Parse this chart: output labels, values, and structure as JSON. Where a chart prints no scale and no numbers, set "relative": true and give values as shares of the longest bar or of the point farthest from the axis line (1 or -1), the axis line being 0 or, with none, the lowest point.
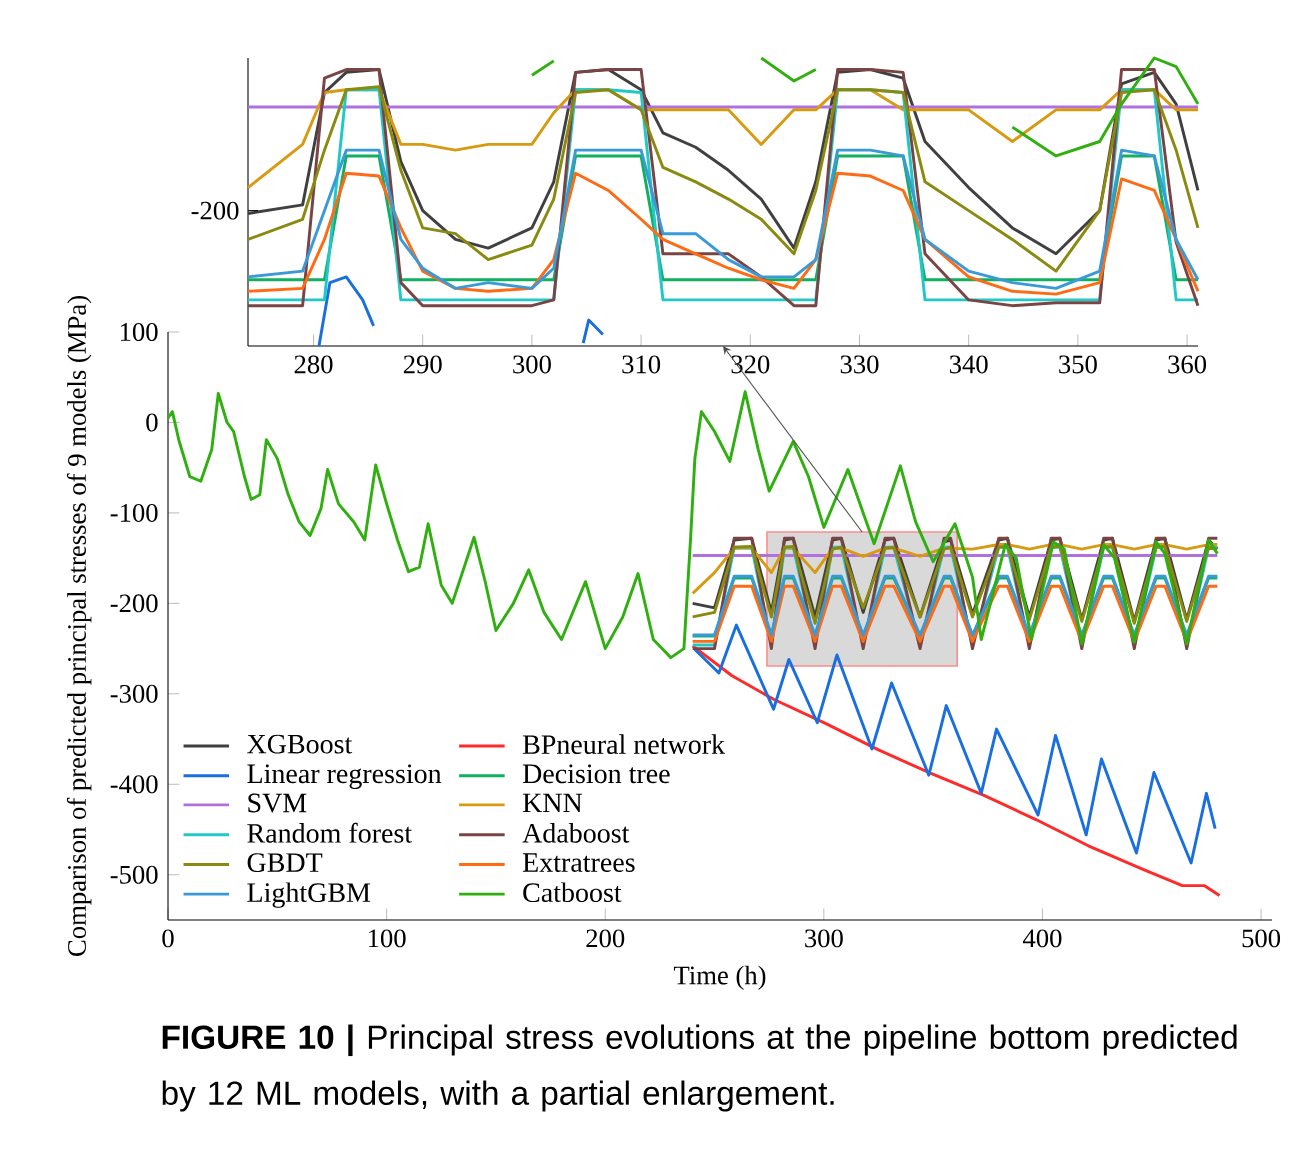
{
  "chart_data": [
    {
      "type": "line",
      "xlabel": "Time (h)",
      "ylabel": "Comparison of predicted principal stresses of 9 models (MPa)",
      "annotations": [
        "**FIGURE 10 |** Principal stress evolutions at the pipeline bottom predicted by 12 ML models, with a partial enlargement."
      ],
      "xlim": [
        0,
        505
      ],
      "ylim": [
        -550,
        100
      ],
      "xticks": [
        0,
        100,
        200,
        300,
        400,
        500
      ],
      "yticks": [
        -500,
        -400,
        -300,
        -200,
        -100,
        0,
        100
      ],
      "legend": "bottom left",
      "x": [
        240,
        250,
        259,
        267,
        276,
        282,
        286,
        296,
        304,
        308,
        318,
        328,
        332,
        344,
        355,
        358,
        368,
        380,
        384,
        394,
        404,
        408,
        418,
        428,
        432,
        442,
        452,
        456,
        466,
        476,
        480
      ],
      "series": [
        {
          "name": "XGBoost",
          "color": "#404040",
          "values": [
            -200,
            -205,
            -130,
            -128,
            -210,
            -130,
            -128,
            -215,
            -130,
            -128,
            -210,
            -130,
            -128,
            -215,
            -132,
            -130,
            -212,
            -130,
            -128,
            -215,
            -130,
            -128,
            -218,
            -130,
            -128,
            -220,
            -130,
            -128,
            -218,
            -130,
            -140
          ]
        },
        {
          "name": "BPneural network",
          "color": "#ff2a2a",
          "x": [
            240,
            258,
            277,
            301,
            325,
            349,
            373,
            397,
            421,
            446,
            464,
            474,
            481
          ],
          "values": [
            -247,
            -280,
            -306,
            -333,
            -362,
            -388,
            -412,
            -439,
            -468,
            -494,
            -512,
            -512,
            -523
          ]
        },
        {
          "name": "Linear regression",
          "color": "#1a6fe0",
          "x": [
            241,
            252,
            260,
            277,
            284,
            297,
            306,
            322,
            331,
            348,
            356,
            372,
            379,
            398,
            406,
            420,
            427,
            443,
            451,
            468,
            475,
            479
          ],
          "values": [
            -251,
            -277,
            -224,
            -317,
            -262,
            -332,
            -257,
            -361,
            -288,
            -390,
            -313,
            -410,
            -339,
            -434,
            -346,
            -456,
            -372,
            -476,
            -387,
            -487,
            -410,
            -449
          ]
        },
        {
          "name": "Decision tree",
          "color": "#10b060",
          "values": [
            -236,
            -236,
            -172,
            -172,
            -236,
            -172,
            -172,
            -236,
            -172,
            -172,
            -236,
            -172,
            -172,
            -236,
            -172,
            -172,
            -236,
            -172,
            -172,
            -236,
            -172,
            -172,
            -236,
            -172,
            -172,
            -236,
            -172,
            -172,
            -236,
            -172,
            -172
          ]
        },
        {
          "name": "SVM",
          "color": "#b070e0",
          "values": [
            -147,
            -147,
            -147,
            -147,
            -147,
            -147,
            -147,
            -147,
            -147,
            -147,
            -147,
            -147,
            -147,
            -147,
            -147,
            -147,
            -147,
            -147,
            -147,
            -147,
            -147,
            -147,
            -147,
            -147,
            -147,
            -147,
            -147,
            -147,
            -147,
            -147,
            -147
          ]
        },
        {
          "name": "KNN",
          "color": "#d89a10",
          "values": [
            -189,
            -166,
            -139,
            -139,
            -166,
            -139,
            -139,
            -166,
            -139,
            -139,
            -148,
            -139,
            -139,
            -148,
            -139,
            -139,
            -140,
            -135,
            -135,
            -140,
            -135,
            -135,
            -140,
            -135,
            -135,
            -140,
            -135,
            -135,
            -140,
            -135,
            -135
          ]
        },
        {
          "name": "Random forest",
          "color": "#20c8c8",
          "values": [
            -246,
            -246,
            -138,
            -138,
            -246,
            -138,
            -138,
            -246,
            -138,
            -138,
            -246,
            -138,
            -138,
            -246,
            -138,
            -138,
            -246,
            -138,
            -138,
            -246,
            -138,
            -138,
            -246,
            -138,
            -138,
            -246,
            -138,
            -138,
            -246,
            -138,
            -138
          ]
        },
        {
          "name": "Adaboost",
          "color": "#7a4444",
          "values": [
            -250,
            -250,
            -128,
            -128,
            -250,
            -128,
            -128,
            -250,
            -128,
            -128,
            -250,
            -128,
            -128,
            -250,
            -128,
            -128,
            -250,
            -128,
            -128,
            -250,
            -128,
            -128,
            -250,
            -128,
            -128,
            -250,
            -128,
            -128,
            -250,
            -128,
            -128
          ]
        },
        {
          "name": "GBDT",
          "color": "#8a8a10",
          "values": [
            -215,
            -210,
            -138,
            -137,
            -215,
            -138,
            -137,
            -222,
            -140,
            -138,
            -205,
            -139,
            -138,
            -215,
            -140,
            -138,
            -215,
            -138,
            -137,
            -218,
            -138,
            -137,
            -220,
            -138,
            -137,
            -222,
            -138,
            -137,
            -220,
            -138,
            -140
          ]
        },
        {
          "name": "Extratrees",
          "color": "#ff6a14",
          "values": [
            -242,
            -242,
            -181,
            -181,
            -242,
            -181,
            -181,
            -242,
            -181,
            -181,
            -242,
            -181,
            -181,
            -242,
            -181,
            -181,
            -242,
            -181,
            -181,
            -242,
            -181,
            -181,
            -242,
            -181,
            -181,
            -242,
            -181,
            -181,
            -242,
            -181,
            -181
          ]
        },
        {
          "name": "LightGBM",
          "color": "#3a9ad8",
          "values": [
            -235,
            -235,
            -170,
            -170,
            -235,
            -170,
            -170,
            -235,
            -170,
            -170,
            -235,
            -170,
            -170,
            -235,
            -170,
            -170,
            -235,
            -170,
            -170,
            -235,
            -170,
            -170,
            -235,
            -170,
            -170,
            -235,
            -170,
            -170,
            -235,
            -170,
            -170
          ]
        },
        {
          "name": "Catboost",
          "color": "#30b010",
          "x": [
            0,
            2,
            5,
            10,
            15,
            20,
            23,
            27,
            30,
            35,
            38,
            42,
            45,
            50,
            55,
            60,
            65,
            70,
            73,
            78,
            85,
            90,
            95,
            100,
            105,
            110,
            115,
            119,
            125,
            130,
            140,
            145,
            150,
            158,
            165,
            172,
            180,
            191,
            200,
            208,
            215,
            222,
            230,
            236,
            239,
            241,
            244,
            250,
            257,
            264,
            270,
            275,
            286,
            293,
            300,
            311,
            318,
            323,
            335,
            342,
            350,
            360,
            368,
            372,
            383,
            388,
            395,
            405,
            410,
            418,
            428,
            433,
            442,
            452,
            456,
            466,
            476,
            480
          ],
          "values": [
            5,
            12,
            -20,
            -60,
            -65,
            -30,
            32,
            0,
            -10,
            -60,
            -85,
            -80,
            -19,
            -40,
            -80,
            -110,
            -125,
            -95,
            -52,
            -90,
            -110,
            -130,
            -47,
            -90,
            -130,
            -165,
            -160,
            -112,
            -180,
            -200,
            -127,
            -175,
            -230,
            -200,
            -163,
            -210,
            -240,
            -176,
            -250,
            -215,
            -167,
            -240,
            -260,
            -250,
            -130,
            -40,
            12,
            -10,
            -43,
            34,
            -30,
            -76,
            -21,
            -60,
            -116,
            -52,
            -100,
            -134,
            -48,
            -110,
            -154,
            -112,
            -171,
            -240,
            -135,
            -150,
            -240,
            -132,
            -140,
            -245,
            -135,
            -150,
            -243,
            -132,
            -145,
            -245,
            -130,
            -145
          ]
        }
      ]
    },
    {
      "type": "line",
      "relative": true,
      "annotations": [
        "-200"
      ],
      "xlim": [
        274,
        361
      ],
      "xticks": [
        280,
        290,
        300,
        310,
        320,
        330,
        340,
        350,
        360
      ],
      "x": [
        274,
        279,
        281,
        283,
        286,
        288,
        290,
        293,
        296,
        300,
        302,
        304,
        307,
        310,
        312,
        315,
        318,
        321,
        324,
        326,
        328,
        331,
        334,
        336,
        340,
        344,
        348,
        352,
        354,
        357,
        359,
        361
      ],
      "series": [
        {
          "color": "#404040",
          "values": [
            0.46,
            0.49,
            0.88,
            0.95,
            0.96,
            0.64,
            0.47,
            0.37,
            0.34,
            0.41,
            0.57,
            0.95,
            0.96,
            0.89,
            0.74,
            0.69,
            0.61,
            0.51,
            0.34,
            0.57,
            0.95,
            0.96,
            0.93,
            0.71,
            0.55,
            0.41,
            0.32,
            0.47,
            0.91,
            0.95,
            0.84,
            0.54
          ]
        },
        {
          "color": "#1a6fe0",
          "x": [
            280.5,
            281.5,
            283,
            284.5,
            285.5,
            286,
            304.5,
            304.7,
            305.2,
            306.5
          ],
          "values": [
            0,
            0.22,
            0.24,
            0.16,
            0.07,
            null,
            null,
            0.01,
            0.09,
            0.04
          ]
        },
        {
          "color": "#10b060",
          "values": [
            0.23,
            0.23,
            0.23,
            0.66,
            0.66,
            0.23,
            0.23,
            0.23,
            0.23,
            0.23,
            0.23,
            0.66,
            0.66,
            0.66,
            0.23,
            0.23,
            0.23,
            0.23,
            0.23,
            0.23,
            0.66,
            0.66,
            0.66,
            0.23,
            0.23,
            0.23,
            0.23,
            0.23,
            0.66,
            0.66,
            0.23,
            0.23
          ]
        },
        {
          "color": "#b070e0",
          "values": [
            0.83,
            0.83,
            0.83,
            0.83,
            0.83,
            0.83,
            0.83,
            0.83,
            0.83,
            0.83,
            0.83,
            0.83,
            0.83,
            0.83,
            0.83,
            0.83,
            0.83,
            0.83,
            0.83,
            0.83,
            0.83,
            0.83,
            0.83,
            0.83,
            0.83,
            0.83,
            0.83,
            0.83,
            0.83,
            0.83,
            0.83,
            0.83
          ]
        },
        {
          "color": "#d89a10",
          "values": [
            0.55,
            0.7,
            0.88,
            0.89,
            0.89,
            0.7,
            0.7,
            0.68,
            0.7,
            0.7,
            0.81,
            0.89,
            0.89,
            0.82,
            0.82,
            0.82,
            0.82,
            0.7,
            0.82,
            0.82,
            0.89,
            0.89,
            0.82,
            0.82,
            0.82,
            0.71,
            0.82,
            0.82,
            0.89,
            0.89,
            0.82,
            0.82
          ]
        },
        {
          "color": "#20c8c8",
          "values": [
            0.16,
            0.16,
            0.16,
            0.89,
            0.89,
            0.16,
            0.16,
            0.16,
            0.16,
            0.16,
            0.16,
            0.89,
            0.89,
            0.88,
            0.16,
            0.16,
            0.16,
            0.16,
            0.16,
            0.16,
            0.89,
            0.89,
            0.88,
            0.16,
            0.16,
            0.16,
            0.16,
            0.16,
            0.89,
            0.89,
            0.16,
            0.16
          ]
        },
        {
          "color": "#7a4444",
          "values": [
            0.14,
            0.14,
            0.93,
            0.96,
            0.96,
            0.22,
            0.14,
            0.14,
            0.14,
            0.14,
            0.16,
            0.95,
            0.96,
            0.96,
            0.32,
            0.32,
            0.32,
            0.24,
            0.14,
            0.14,
            0.96,
            0.96,
            0.95,
            0.32,
            0.16,
            0.14,
            0.15,
            0.15,
            0.96,
            0.96,
            0.36,
            0.14
          ]
        },
        {
          "color": "#8a8a10",
          "values": [
            0.37,
            0.44,
            0.68,
            0.89,
            0.9,
            0.61,
            0.41,
            0.39,
            0.3,
            0.35,
            0.51,
            0.88,
            0.89,
            0.82,
            0.62,
            0.57,
            0.51,
            0.44,
            0.32,
            0.54,
            0.89,
            0.89,
            0.88,
            0.57,
            0.47,
            0.37,
            0.26,
            0.47,
            0.88,
            0.89,
            0.68,
            0.41
          ]
        },
        {
          "color": "#ff6a14",
          "values": [
            0.19,
            0.2,
            0.37,
            0.6,
            0.59,
            0.41,
            0.26,
            0.2,
            0.19,
            0.2,
            0.3,
            0.6,
            0.54,
            0.44,
            0.37,
            0.32,
            0.27,
            0.23,
            0.2,
            0.3,
            0.6,
            0.59,
            0.54,
            0.37,
            0.24,
            0.19,
            0.18,
            0.22,
            0.58,
            0.54,
            0.37,
            0.19
          ]
        },
        {
          "color": "#3a9ad8",
          "values": [
            0.24,
            0.26,
            0.47,
            0.68,
            0.68,
            0.37,
            0.27,
            0.2,
            0.22,
            0.2,
            0.27,
            0.68,
            0.68,
            0.68,
            0.39,
            0.39,
            0.3,
            0.24,
            0.24,
            0.3,
            0.68,
            0.68,
            0.66,
            0.37,
            0.26,
            0.22,
            0.2,
            0.26,
            0.68,
            0.66,
            0.37,
            0.23
          ]
        },
        {
          "color": "#30b010",
          "values": [
            null,
            null,
            null,
            null,
            null,
            null,
            null,
            null,
            null,
            0.94,
            0.99,
            null,
            null,
            null,
            null,
            null,
            null,
            1.0,
            0.92,
            0.96,
            null,
            null,
            null,
            null,
            null,
            0.76,
            0.66,
            0.71,
            0.84,
            1.0,
            0.97,
            0.84
          ]
        }
      ]
    }
  ]
}
